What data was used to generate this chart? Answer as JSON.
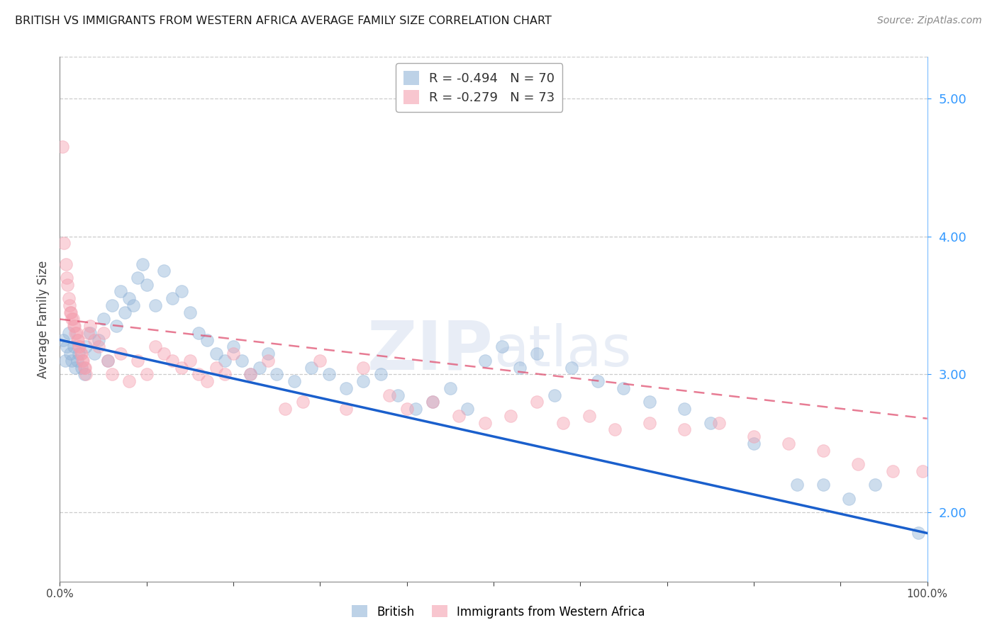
{
  "title": "BRITISH VS IMMIGRANTS FROM WESTERN AFRICA AVERAGE FAMILY SIZE CORRELATION CHART",
  "source": "Source: ZipAtlas.com",
  "ylabel": "Average Family Size",
  "right_yticks": [
    2.0,
    3.0,
    4.0,
    5.0
  ],
  "watermark": "ZIPatlas",
  "legend_british_r": "R = -0.494",
  "legend_british_n": "N = 70",
  "legend_immigrant_r": "R = -0.279",
  "legend_immigrant_n": "N = 73",
  "british_color": "#92b4d8",
  "immigrant_color": "#f4a0b0",
  "british_line_color": "#1a5fcc",
  "immigrant_line_color": "#e05070",
  "british_scatter": [
    [
      0.4,
      3.25
    ],
    [
      0.6,
      3.1
    ],
    [
      0.8,
      3.2
    ],
    [
      1.0,
      3.3
    ],
    [
      1.2,
      3.15
    ],
    [
      1.4,
      3.1
    ],
    [
      1.6,
      3.2
    ],
    [
      1.8,
      3.05
    ],
    [
      2.0,
      3.1
    ],
    [
      2.2,
      3.15
    ],
    [
      2.5,
      3.05
    ],
    [
      2.8,
      3.0
    ],
    [
      3.0,
      3.2
    ],
    [
      3.5,
      3.3
    ],
    [
      4.0,
      3.15
    ],
    [
      4.5,
      3.25
    ],
    [
      5.0,
      3.4
    ],
    [
      5.5,
      3.1
    ],
    [
      6.0,
      3.5
    ],
    [
      6.5,
      3.35
    ],
    [
      7.0,
      3.6
    ],
    [
      7.5,
      3.45
    ],
    [
      8.0,
      3.55
    ],
    [
      8.5,
      3.5
    ],
    [
      9.0,
      3.7
    ],
    [
      9.5,
      3.8
    ],
    [
      10.0,
      3.65
    ],
    [
      11.0,
      3.5
    ],
    [
      12.0,
      3.75
    ],
    [
      13.0,
      3.55
    ],
    [
      14.0,
      3.6
    ],
    [
      15.0,
      3.45
    ],
    [
      16.0,
      3.3
    ],
    [
      17.0,
      3.25
    ],
    [
      18.0,
      3.15
    ],
    [
      19.0,
      3.1
    ],
    [
      20.0,
      3.2
    ],
    [
      21.0,
      3.1
    ],
    [
      22.0,
      3.0
    ],
    [
      23.0,
      3.05
    ],
    [
      24.0,
      3.15
    ],
    [
      25.0,
      3.0
    ],
    [
      27.0,
      2.95
    ],
    [
      29.0,
      3.05
    ],
    [
      31.0,
      3.0
    ],
    [
      33.0,
      2.9
    ],
    [
      35.0,
      2.95
    ],
    [
      37.0,
      3.0
    ],
    [
      39.0,
      2.85
    ],
    [
      41.0,
      2.75
    ],
    [
      43.0,
      2.8
    ],
    [
      45.0,
      2.9
    ],
    [
      47.0,
      2.75
    ],
    [
      49.0,
      3.1
    ],
    [
      51.0,
      3.2
    ],
    [
      53.0,
      3.05
    ],
    [
      55.0,
      3.15
    ],
    [
      57.0,
      2.85
    ],
    [
      59.0,
      3.05
    ],
    [
      62.0,
      2.95
    ],
    [
      65.0,
      2.9
    ],
    [
      68.0,
      2.8
    ],
    [
      72.0,
      2.75
    ],
    [
      75.0,
      2.65
    ],
    [
      80.0,
      2.5
    ],
    [
      85.0,
      2.2
    ],
    [
      88.0,
      2.2
    ],
    [
      91.0,
      2.1
    ],
    [
      94.0,
      2.2
    ],
    [
      99.0,
      1.85
    ]
  ],
  "immigrant_scatter": [
    [
      0.3,
      4.65
    ],
    [
      0.5,
      3.95
    ],
    [
      0.7,
      3.8
    ],
    [
      0.8,
      3.7
    ],
    [
      0.9,
      3.65
    ],
    [
      1.0,
      3.55
    ],
    [
      1.1,
      3.5
    ],
    [
      1.2,
      3.45
    ],
    [
      1.3,
      3.45
    ],
    [
      1.4,
      3.4
    ],
    [
      1.5,
      3.4
    ],
    [
      1.6,
      3.35
    ],
    [
      1.7,
      3.35
    ],
    [
      1.8,
      3.3
    ],
    [
      1.9,
      3.3
    ],
    [
      2.0,
      3.25
    ],
    [
      2.1,
      3.25
    ],
    [
      2.2,
      3.2
    ],
    [
      2.3,
      3.2
    ],
    [
      2.4,
      3.15
    ],
    [
      2.5,
      3.15
    ],
    [
      2.6,
      3.1
    ],
    [
      2.7,
      3.1
    ],
    [
      2.8,
      3.05
    ],
    [
      2.9,
      3.05
    ],
    [
      3.0,
      3.0
    ],
    [
      3.2,
      3.3
    ],
    [
      3.5,
      3.35
    ],
    [
      4.0,
      3.25
    ],
    [
      4.5,
      3.2
    ],
    [
      5.0,
      3.3
    ],
    [
      5.5,
      3.1
    ],
    [
      6.0,
      3.0
    ],
    [
      7.0,
      3.15
    ],
    [
      8.0,
      2.95
    ],
    [
      9.0,
      3.1
    ],
    [
      10.0,
      3.0
    ],
    [
      11.0,
      3.2
    ],
    [
      12.0,
      3.15
    ],
    [
      13.0,
      3.1
    ],
    [
      14.0,
      3.05
    ],
    [
      15.0,
      3.1
    ],
    [
      16.0,
      3.0
    ],
    [
      17.0,
      2.95
    ],
    [
      18.0,
      3.05
    ],
    [
      19.0,
      3.0
    ],
    [
      20.0,
      3.15
    ],
    [
      22.0,
      3.0
    ],
    [
      24.0,
      3.1
    ],
    [
      26.0,
      2.75
    ],
    [
      28.0,
      2.8
    ],
    [
      30.0,
      3.1
    ],
    [
      33.0,
      2.75
    ],
    [
      35.0,
      3.05
    ],
    [
      38.0,
      2.85
    ],
    [
      40.0,
      2.75
    ],
    [
      43.0,
      2.8
    ],
    [
      46.0,
      2.7
    ],
    [
      49.0,
      2.65
    ],
    [
      52.0,
      2.7
    ],
    [
      55.0,
      2.8
    ],
    [
      58.0,
      2.65
    ],
    [
      61.0,
      2.7
    ],
    [
      64.0,
      2.6
    ],
    [
      68.0,
      2.65
    ],
    [
      72.0,
      2.6
    ],
    [
      76.0,
      2.65
    ],
    [
      80.0,
      2.55
    ],
    [
      84.0,
      2.5
    ],
    [
      88.0,
      2.45
    ],
    [
      92.0,
      2.35
    ],
    [
      96.0,
      2.3
    ],
    [
      99.5,
      2.3
    ]
  ],
  "xlim": [
    0,
    100
  ],
  "ylim": [
    1.5,
    5.3
  ]
}
